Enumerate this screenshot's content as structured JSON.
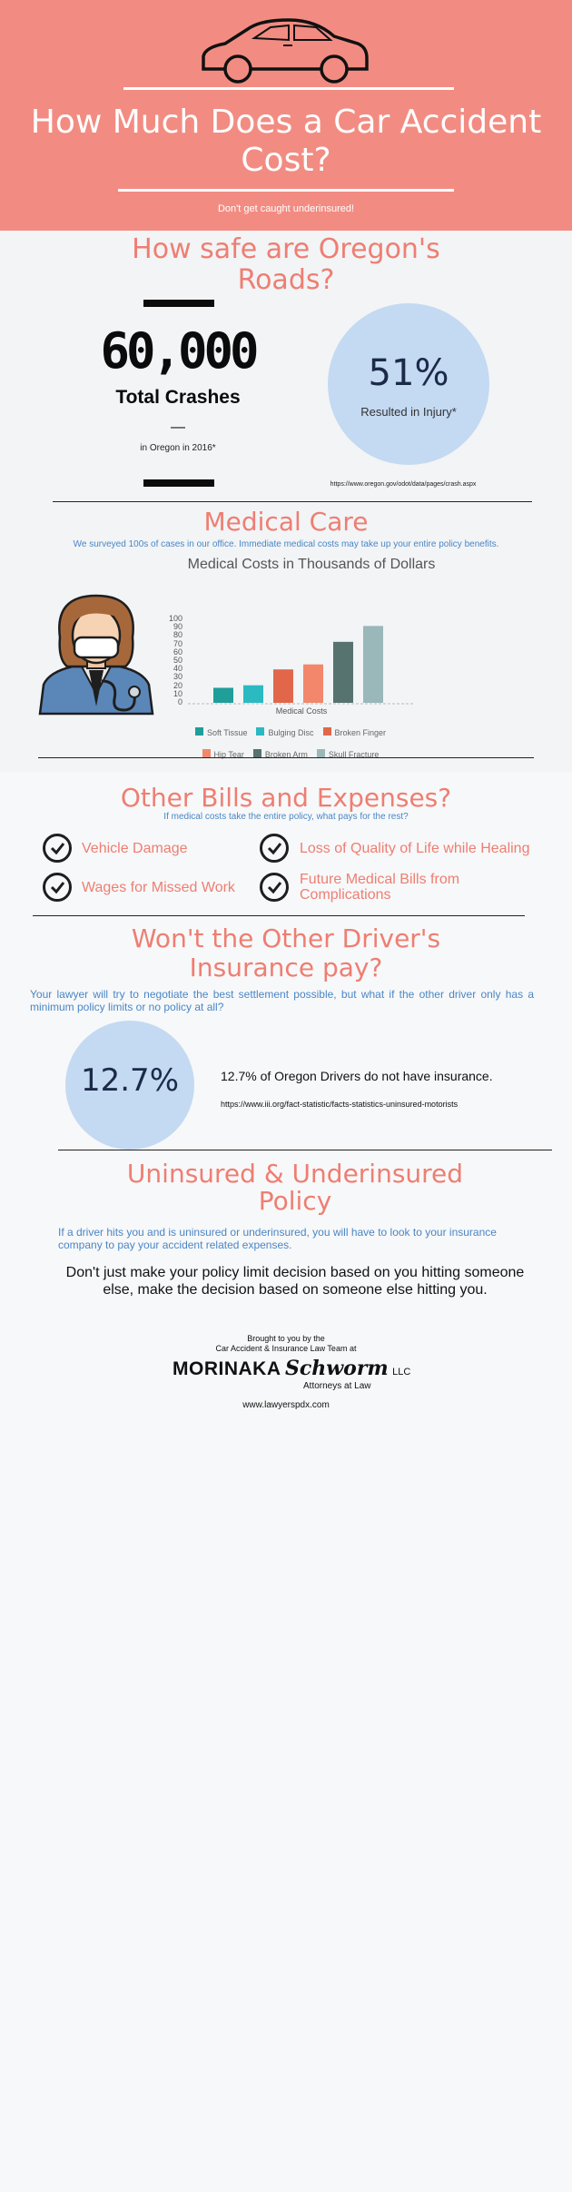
{
  "header": {
    "title": "How Much Does a Car Accident Cost?",
    "subtitle": "Don't get caught underinsured!",
    "car_icon": "car-icon"
  },
  "safety": {
    "heading": "How safe are Oregon's Roads?",
    "crashes_value": "60,000",
    "crashes_label": "Total Crashes",
    "crashes_dash": "—",
    "crashes_note": "in Oregon in 2016*",
    "injury_percent": "51%",
    "injury_label": "Resulted in Injury*",
    "source": "https://www.oregon.gov/odot/data/pages/crash.aspx"
  },
  "medical": {
    "heading": "Medical Care",
    "text": "We surveyed 100s of cases in our office. Immediate medical costs may take up your entire policy benefits.",
    "doctor_icon": "doctor-icon"
  },
  "chart_data": {
    "type": "bar",
    "title": "Medical Costs in Thousands of Dollars",
    "xlabel": "Medical Costs",
    "ylabel": "",
    "ylim": [
      0,
      100
    ],
    "yticks": [
      0,
      10,
      20,
      30,
      40,
      50,
      60,
      70,
      80,
      90,
      100
    ],
    "grid": false,
    "legend_position": "bottom",
    "series": [
      {
        "name": "Soft Tissue",
        "value": 18,
        "color": "#1f9e9a"
      },
      {
        "name": "Bulging Disc",
        "value": 21,
        "color": "#2bb9c2"
      },
      {
        "name": "Broken Finger",
        "value": 40,
        "color": "#e2674a"
      },
      {
        "name": "Hip Tear",
        "value": 46,
        "color": "#f2876b"
      },
      {
        "name": "Broken Arm",
        "value": 73,
        "color": "#56736f"
      },
      {
        "name": "Skull Fracture",
        "value": 92,
        "color": "#9ab7ba"
      }
    ]
  },
  "expenses": {
    "heading": "Other Bills and Expenses?",
    "subheading": "If medical costs take the entire policy, what pays for the rest?",
    "items": [
      "Vehicle Damage",
      "Loss of Quality of Life while Healing",
      "Wages for Missed Work",
      "Future Medical Bills from Complications"
    ]
  },
  "other_driver": {
    "heading": "Won't the Other Driver's Insurance pay?",
    "text": "Your lawyer will try to negotiate the best settlement possible, but what if the other driver only has a minimum policy limits or no policy at all?",
    "percent": "12.7%",
    "statement": "12.7% of Oregon Drivers do not have insurance.",
    "source": "https://www.iii.org/fact-statistic/facts-statistics-uninsured-motorists"
  },
  "policy": {
    "heading": "Uninsured & Underinsured Policy",
    "text": "If a driver hits you and is uninsured or underinsured, you will have to look to your insurance company to pay your accident related expenses.",
    "advice": "Don't just make your policy limit decision based on you hitting someone else, make the decision based on someone else hitting you."
  },
  "footer": {
    "brought": "Brought to you by the",
    "team": "Car Accident & Insurance Law Team at",
    "brand_1": "MORINAKA",
    "brand_2": "Schworm",
    "brand_3": "LLC",
    "tagline": "Attorneys at Law",
    "website": "www.lawyerspdx.com"
  },
  "colors": {
    "header_bg": "#f28c82",
    "accent": "#ee7e72",
    "blue_text": "#4a86c6",
    "circle": "#c4d9f2"
  }
}
